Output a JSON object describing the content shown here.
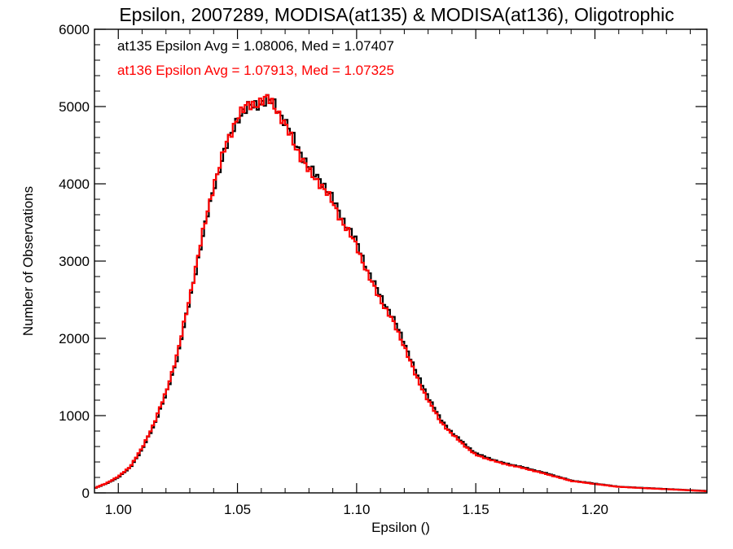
{
  "chart_data": {
    "type": "line",
    "title": "Epsilon, 2007289, MODISA(at135) & MODISA(at136), Oligotrophic",
    "xlabel": "Epsilon ()",
    "ylabel": "Number of Observations",
    "xlim": [
      0.99,
      1.247
    ],
    "ylim": [
      0,
      6000
    ],
    "x_ticks": [
      1.0,
      1.05,
      1.1,
      1.15,
      1.2
    ],
    "x_tick_labels": [
      "1.00",
      "1.05",
      "1.10",
      "1.15",
      "1.20"
    ],
    "y_ticks": [
      0,
      1000,
      2000,
      3000,
      4000,
      5000,
      6000
    ],
    "y_tick_labels": [
      "0",
      "1000",
      "2000",
      "3000",
      "4000",
      "5000",
      "6000"
    ],
    "grid": false,
    "legend_placement": "top-left",
    "series": [
      {
        "name": "at135",
        "legend_text": "at135 Epsilon Avg = 1.08006, Med = 1.07407",
        "color": "#000000",
        "x": [
          0.99,
          0.995,
          1.0,
          1.005,
          1.01,
          1.015,
          1.02,
          1.025,
          1.03,
          1.035,
          1.04,
          1.045,
          1.05,
          1.055,
          1.06,
          1.063,
          1.066,
          1.07,
          1.075,
          1.08,
          1.085,
          1.09,
          1.095,
          1.1,
          1.105,
          1.11,
          1.115,
          1.12,
          1.125,
          1.13,
          1.135,
          1.14,
          1.145,
          1.15,
          1.16,
          1.17,
          1.18,
          1.19,
          1.2,
          1.21,
          1.22,
          1.23,
          1.24,
          1.247
        ],
        "y": [
          60,
          120,
          200,
          330,
          560,
          880,
          1270,
          1780,
          2500,
          3250,
          3950,
          4450,
          4850,
          5000,
          5050,
          5080,
          5020,
          4800,
          4500,
          4200,
          4050,
          3800,
          3500,
          3250,
          2850,
          2550,
          2280,
          1950,
          1550,
          1250,
          960,
          780,
          640,
          510,
          400,
          330,
          250,
          160,
          120,
          80,
          65,
          50,
          35,
          25
        ]
      },
      {
        "name": "at136",
        "legend_text": "at136 Epsilon Avg = 1.07913, Med = 1.07325",
        "color": "#ff0000",
        "x": [
          0.99,
          0.995,
          1.0,
          1.005,
          1.01,
          1.015,
          1.02,
          1.025,
          1.03,
          1.035,
          1.04,
          1.045,
          1.05,
          1.055,
          1.06,
          1.063,
          1.066,
          1.07,
          1.075,
          1.08,
          1.085,
          1.09,
          1.095,
          1.1,
          1.105,
          1.11,
          1.115,
          1.12,
          1.125,
          1.13,
          1.135,
          1.14,
          1.145,
          1.15,
          1.16,
          1.17,
          1.18,
          1.19,
          1.2,
          1.21,
          1.22,
          1.23,
          1.24,
          1.247
        ],
        "y": [
          60,
          125,
          210,
          340,
          580,
          900,
          1300,
          1820,
          2540,
          3290,
          3990,
          4480,
          4880,
          5020,
          5060,
          5100,
          5000,
          4750,
          4450,
          4150,
          4000,
          3750,
          3450,
          3200,
          2800,
          2500,
          2230,
          1900,
          1500,
          1200,
          930,
          760,
          620,
          490,
          390,
          320,
          240,
          155,
          115,
          78,
          62,
          48,
          33,
          22
        ]
      }
    ]
  }
}
